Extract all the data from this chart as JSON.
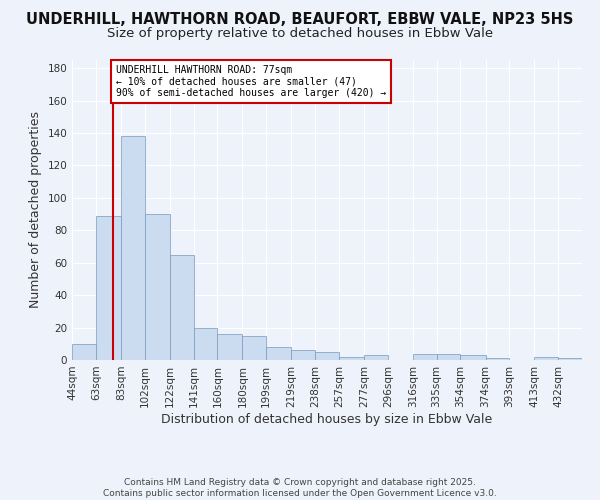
{
  "title": "UNDERHILL, HAWTHORN ROAD, BEAUFORT, EBBW VALE, NP23 5HS",
  "subtitle": "Size of property relative to detached houses in Ebbw Vale",
  "xlabel": "Distribution of detached houses by size in Ebbw Vale",
  "ylabel": "Number of detached properties",
  "bin_labels": [
    "44sqm",
    "63sqm",
    "83sqm",
    "102sqm",
    "122sqm",
    "141sqm",
    "160sqm",
    "180sqm",
    "199sqm",
    "219sqm",
    "238sqm",
    "257sqm",
    "277sqm",
    "296sqm",
    "316sqm",
    "335sqm",
    "354sqm",
    "374sqm",
    "393sqm",
    "413sqm",
    "432sqm"
  ],
  "bin_edges": [
    44,
    63,
    83,
    102,
    122,
    141,
    160,
    180,
    199,
    219,
    238,
    257,
    277,
    296,
    316,
    335,
    354,
    374,
    393,
    413,
    432
  ],
  "values": [
    10,
    89,
    138,
    90,
    65,
    20,
    16,
    15,
    8,
    6,
    5,
    2,
    3,
    0,
    4,
    4,
    3,
    1,
    0,
    2,
    1
  ],
  "bar_color": "#ccdcf0",
  "bar_edge_color": "#7799bb",
  "property_line_x": 77,
  "vline_color": "#cc0000",
  "annotation_text": "UNDERHILL HAWTHORN ROAD: 77sqm\n← 10% of detached houses are smaller (47)\n90% of semi-detached houses are larger (420) →",
  "annotation_box_color": "#ffffff",
  "annotation_box_edge_color": "#cc0000",
  "footer": "Contains HM Land Registry data © Crown copyright and database right 2025.\nContains public sector information licensed under the Open Government Licence v3.0.",
  "ylim": [
    0,
    185
  ],
  "background_color": "#eef2fa",
  "grid_color": "#ffffff",
  "title_fontsize": 10.5,
  "subtitle_fontsize": 9.5,
  "axis_label_fontsize": 9,
  "tick_fontsize": 7.5,
  "footer_fontsize": 6.5
}
